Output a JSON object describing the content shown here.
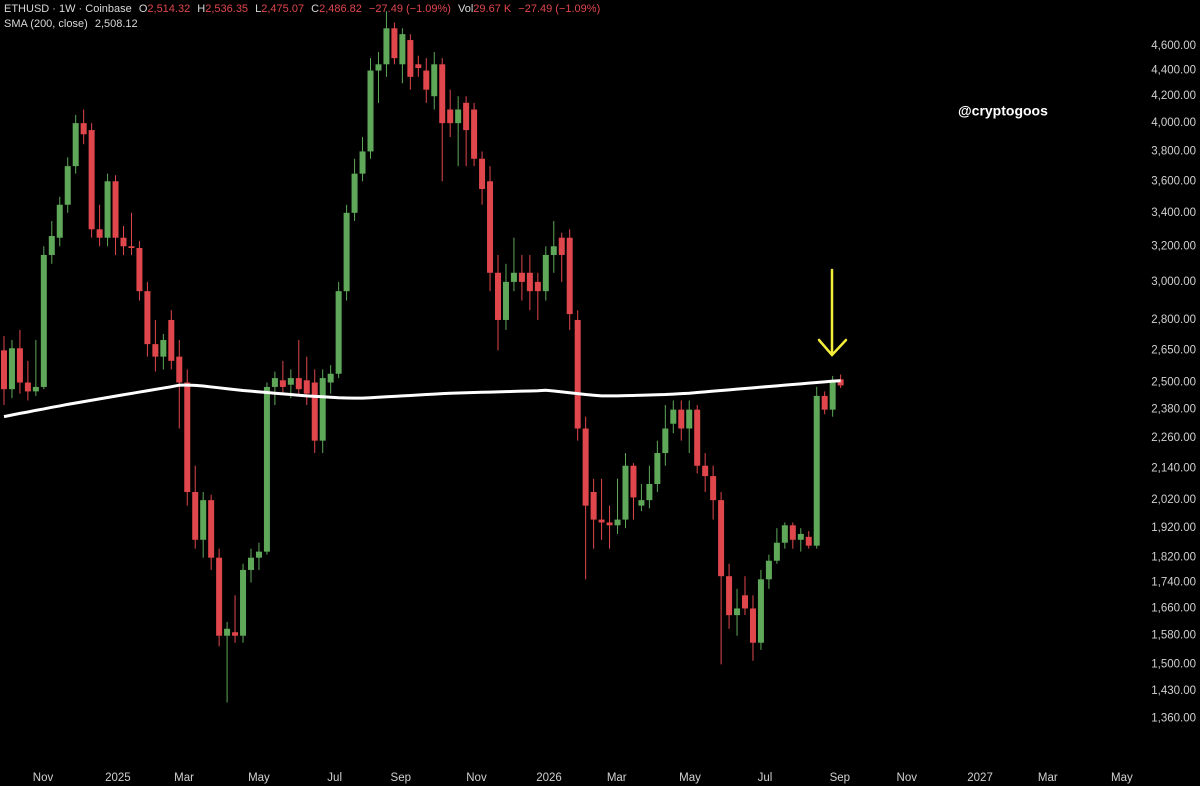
{
  "chart_data": {
    "type": "candlestick",
    "symbol": "ETHUSD · 1W · Coinbase",
    "legend": [
      {
        "label": "O",
        "value": "2,514.32"
      },
      {
        "label": "H",
        "value": "2,536.35"
      },
      {
        "label": "L",
        "value": "2,475.07"
      },
      {
        "label": "C",
        "value": "2,486.82"
      }
    ],
    "change": "−27.49 (−1.09%)",
    "volume_label": "Vol",
    "volume": "29.67 K",
    "volume_change": "−27.49 (−1.09%)",
    "watermark": "@cryptogoos",
    "up_color": "#5fa85a",
    "down_color": "#e0474c",
    "open": [
      2650,
      2470,
      2660,
      2500,
      2460,
      2480,
      3150,
      3250,
      3450,
      3700,
      4000,
      3950,
      3300,
      3250,
      3600,
      3250,
      3200,
      3190,
      2950,
      2680,
      2620,
      2800,
      2620,
      2500,
      2050,
      1880,
      2020,
      1820,
      1580,
      1590,
      1580,
      1780,
      1820,
      1840,
      2480,
      2510,
      2490,
      2520,
      2510,
      2500,
      2250,
      2500,
      2540,
      2950,
      3400,
      3650,
      3800,
      4400,
      4450,
      4750,
      4450,
      4650,
      4450,
      4400,
      4200,
      4450,
      4100,
      4000,
      4150,
      4100,
      3750,
      3600,
      3050,
      2800,
      3000,
      3050,
      3050,
      3000,
      2950,
      3150,
      3250,
      3250,
      2800,
      2300,
      2050,
      1950,
      1940,
      1930,
      1950,
      2150,
      2000,
      2020,
      2080,
      2200,
      2320,
      2380,
      2300,
      2380,
      2150,
      2110,
      2020,
      1760,
      1640,
      1700,
      1660,
      1560,
      1750,
      1810,
      1870,
      1930,
      1880,
      1890,
      1860,
      2440,
      2380,
      2514.32
    ],
    "high": [
      2720,
      2700,
      2750,
      2600,
      2700,
      3200,
      3350,
      3500,
      3760,
      4060,
      4100,
      4000,
      3450,
      3650,
      3640,
      3320,
      3400,
      3230,
      3000,
      2800,
      2730,
      2850,
      2700,
      2560,
      2150,
      2050,
      2040,
      1850,
      1620,
      1700,
      1800,
      1850,
      1870,
      2500,
      2550,
      2600,
      2560,
      2700,
      2620,
      2560,
      2560,
      2580,
      3000,
      3450,
      3750,
      3900,
      4500,
      4550,
      4900,
      4800,
      4750,
      4700,
      4520,
      4500,
      4550,
      4500,
      4250,
      4200,
      4200,
      4150,
      3800,
      3700,
      3150,
      3100,
      3250,
      3150,
      3150,
      3050,
      3200,
      3350,
      3280,
      3300,
      2850,
      2350,
      2100,
      2100,
      2000,
      2100,
      2200,
      2160,
      2080,
      2150,
      2250,
      2400,
      2420,
      2420,
      2420,
      2400,
      2200,
      2150,
      2050,
      1800,
      1720,
      1760,
      1700,
      1780,
      1830,
      1920,
      1940,
      1940,
      1920,
      1910,
      2480,
      2460,
      2530,
      2536.35
    ],
    "low": [
      2400,
      2430,
      2450,
      2420,
      2440,
      2470,
      3100,
      3200,
      3400,
      3650,
      3850,
      3250,
      3200,
      3200,
      3150,
      3150,
      3150,
      2900,
      2620,
      2550,
      2560,
      2560,
      2300,
      2000,
      1850,
      1820,
      1780,
      1550,
      1400,
      1560,
      1560,
      1740,
      1780,
      1830,
      2400,
      2450,
      2430,
      2440,
      2400,
      2200,
      2200,
      2450,
      2520,
      2900,
      3350,
      3600,
      3750,
      4150,
      4350,
      4450,
      4300,
      4250,
      4350,
      4150,
      4100,
      3600,
      3900,
      3700,
      3700,
      3700,
      3450,
      2950,
      2650,
      2750,
      2950,
      2900,
      2850,
      2800,
      2900,
      3050,
      3000,
      2750,
      2250,
      1750,
      1850,
      1880,
      1850,
      1900,
      1920,
      1950,
      1980,
      1990,
      2050,
      2150,
      2280,
      2250,
      2200,
      2120,
      2050,
      1950,
      1500,
      1600,
      1580,
      1640,
      1510,
      1540,
      1720,
      1800,
      1850,
      1850,
      1840,
      1850,
      1850,
      2360,
      2350,
      2475.07
    ],
    "close": [
      2470,
      2660,
      2500,
      2460,
      2480,
      3150,
      3260,
      3450,
      3700,
      4000,
      3920,
      3300,
      3250,
      3600,
      3250,
      3200,
      3190,
      2950,
      2680,
      2620,
      2700,
      2600,
      2500,
      2050,
      1880,
      2020,
      1820,
      1580,
      1600,
      1580,
      1780,
      1820,
      1840,
      2480,
      2520,
      2480,
      2520,
      2470,
      2450,
      2250,
      2520,
      2540,
      2950,
      3400,
      3650,
      3800,
      4400,
      4450,
      4750,
      4500,
      4700,
      4350,
      4420,
      4250,
      4450,
      4000,
      4000,
      4100,
      3950,
      3750,
      3550,
      3050,
      2800,
      3000,
      3050,
      3000,
      2950,
      2950,
      3150,
      3200,
      3150,
      2830,
      2300,
      2000,
      1950,
      1940,
      1930,
      1950,
      2150,
      2030,
      2020,
      2080,
      2200,
      2300,
      2380,
      2300,
      2380,
      2150,
      2110,
      2020,
      1760,
      1640,
      1660,
      1660,
      1560,
      1750,
      1810,
      1870,
      1930,
      1880,
      1900,
      1860,
      2440,
      2380,
      2500,
      2486.82
    ],
    "sma": {
      "name": "SMA (200, close)",
      "color": "#ffffff",
      "last_label": "2,508.12",
      "values": [
        2350,
        2357,
        2364,
        2370,
        2377,
        2383,
        2390,
        2396,
        2403,
        2409,
        2415,
        2421,
        2427,
        2433,
        2439,
        2445,
        2451,
        2457,
        2463,
        2469,
        2475,
        2481,
        2488,
        2488,
        2487,
        2484,
        2480,
        2476,
        2472,
        2468,
        2464,
        2461,
        2458,
        2455,
        2452,
        2449,
        2446,
        2443,
        2440,
        2438,
        2436,
        2434,
        2432,
        2431,
        2430,
        2430,
        2432,
        2434,
        2436,
        2438,
        2440,
        2442,
        2444,
        2446,
        2448,
        2450,
        2452,
        2453,
        2454,
        2455,
        2456,
        2457,
        2458,
        2459,
        2460,
        2461,
        2462,
        2463,
        2465,
        2462,
        2458,
        2454,
        2450,
        2446,
        2443,
        2440,
        2440,
        2440,
        2441,
        2442,
        2443,
        2444,
        2445,
        2446,
        2448,
        2450,
        2452,
        2455,
        2458,
        2461,
        2464,
        2467,
        2470,
        2473,
        2476,
        2479,
        2482,
        2485,
        2488,
        2491,
        2494,
        2497,
        2500,
        2503,
        2506,
        2508.12
      ]
    },
    "ylog": true,
    "grid": false,
    "ylim": [
      1250,
      5000
    ],
    "yticks": [
      {
        "value": 1360,
        "label": "1,360.00"
      },
      {
        "value": 1430,
        "label": "1,430.00"
      },
      {
        "value": 1500,
        "label": "1,500.00"
      },
      {
        "value": 1580,
        "label": "1,580.00"
      },
      {
        "value": 1660,
        "label": "1,660.00"
      },
      {
        "value": 1740,
        "label": "1,740.00"
      },
      {
        "value": 1820,
        "label": "1,820.00"
      },
      {
        "value": 1920,
        "label": "1,920.00"
      },
      {
        "value": 2020,
        "label": "2,020.00"
      },
      {
        "value": 2140,
        "label": "2,140.00"
      },
      {
        "value": 2260,
        "label": "2,260.00"
      },
      {
        "value": 2380,
        "label": "2,380.00"
      },
      {
        "value": 2500,
        "label": "2,500.00"
      },
      {
        "value": 2650,
        "label": "2,650.00"
      },
      {
        "value": 2800,
        "label": "2,800.00"
      },
      {
        "value": 3000,
        "label": "3,000.00"
      },
      {
        "value": 3200,
        "label": "3,200.00"
      },
      {
        "value": 3400,
        "label": "3,400.00"
      },
      {
        "value": 3600,
        "label": "3,600.00"
      },
      {
        "value": 3800,
        "label": "3,800.00"
      },
      {
        "value": 4000,
        "label": "4,000.00"
      },
      {
        "value": 4200,
        "label": "4,200.00"
      },
      {
        "value": 4400,
        "label": "4,400.00"
      },
      {
        "value": 4600,
        "label": "4,600.00"
      }
    ],
    "xlim": [
      -0.5,
      143.2
    ],
    "xticks": [
      {
        "value": 4.9,
        "label": "Nov"
      },
      {
        "value": 14.3,
        "label": "2025"
      },
      {
        "value": 22.6,
        "label": "Mar"
      },
      {
        "value": 32,
        "label": "May"
      },
      {
        "value": 41.5,
        "label": "Jul"
      },
      {
        "value": 49.8,
        "label": "Sep"
      },
      {
        "value": 59.3,
        "label": "Nov"
      },
      {
        "value": 68.4,
        "label": "2026"
      },
      {
        "value": 76.9,
        "label": "Mar"
      },
      {
        "value": 86.1,
        "label": "May"
      },
      {
        "value": 95.5,
        "label": "Jul"
      },
      {
        "value": 104.9,
        "label": "Sep"
      },
      {
        "value": 113.3,
        "label": "Nov"
      },
      {
        "value": 122.5,
        "label": "2027"
      },
      {
        "value": 131,
        "label": "Mar"
      },
      {
        "value": 140.3,
        "label": "May"
      }
    ]
  }
}
